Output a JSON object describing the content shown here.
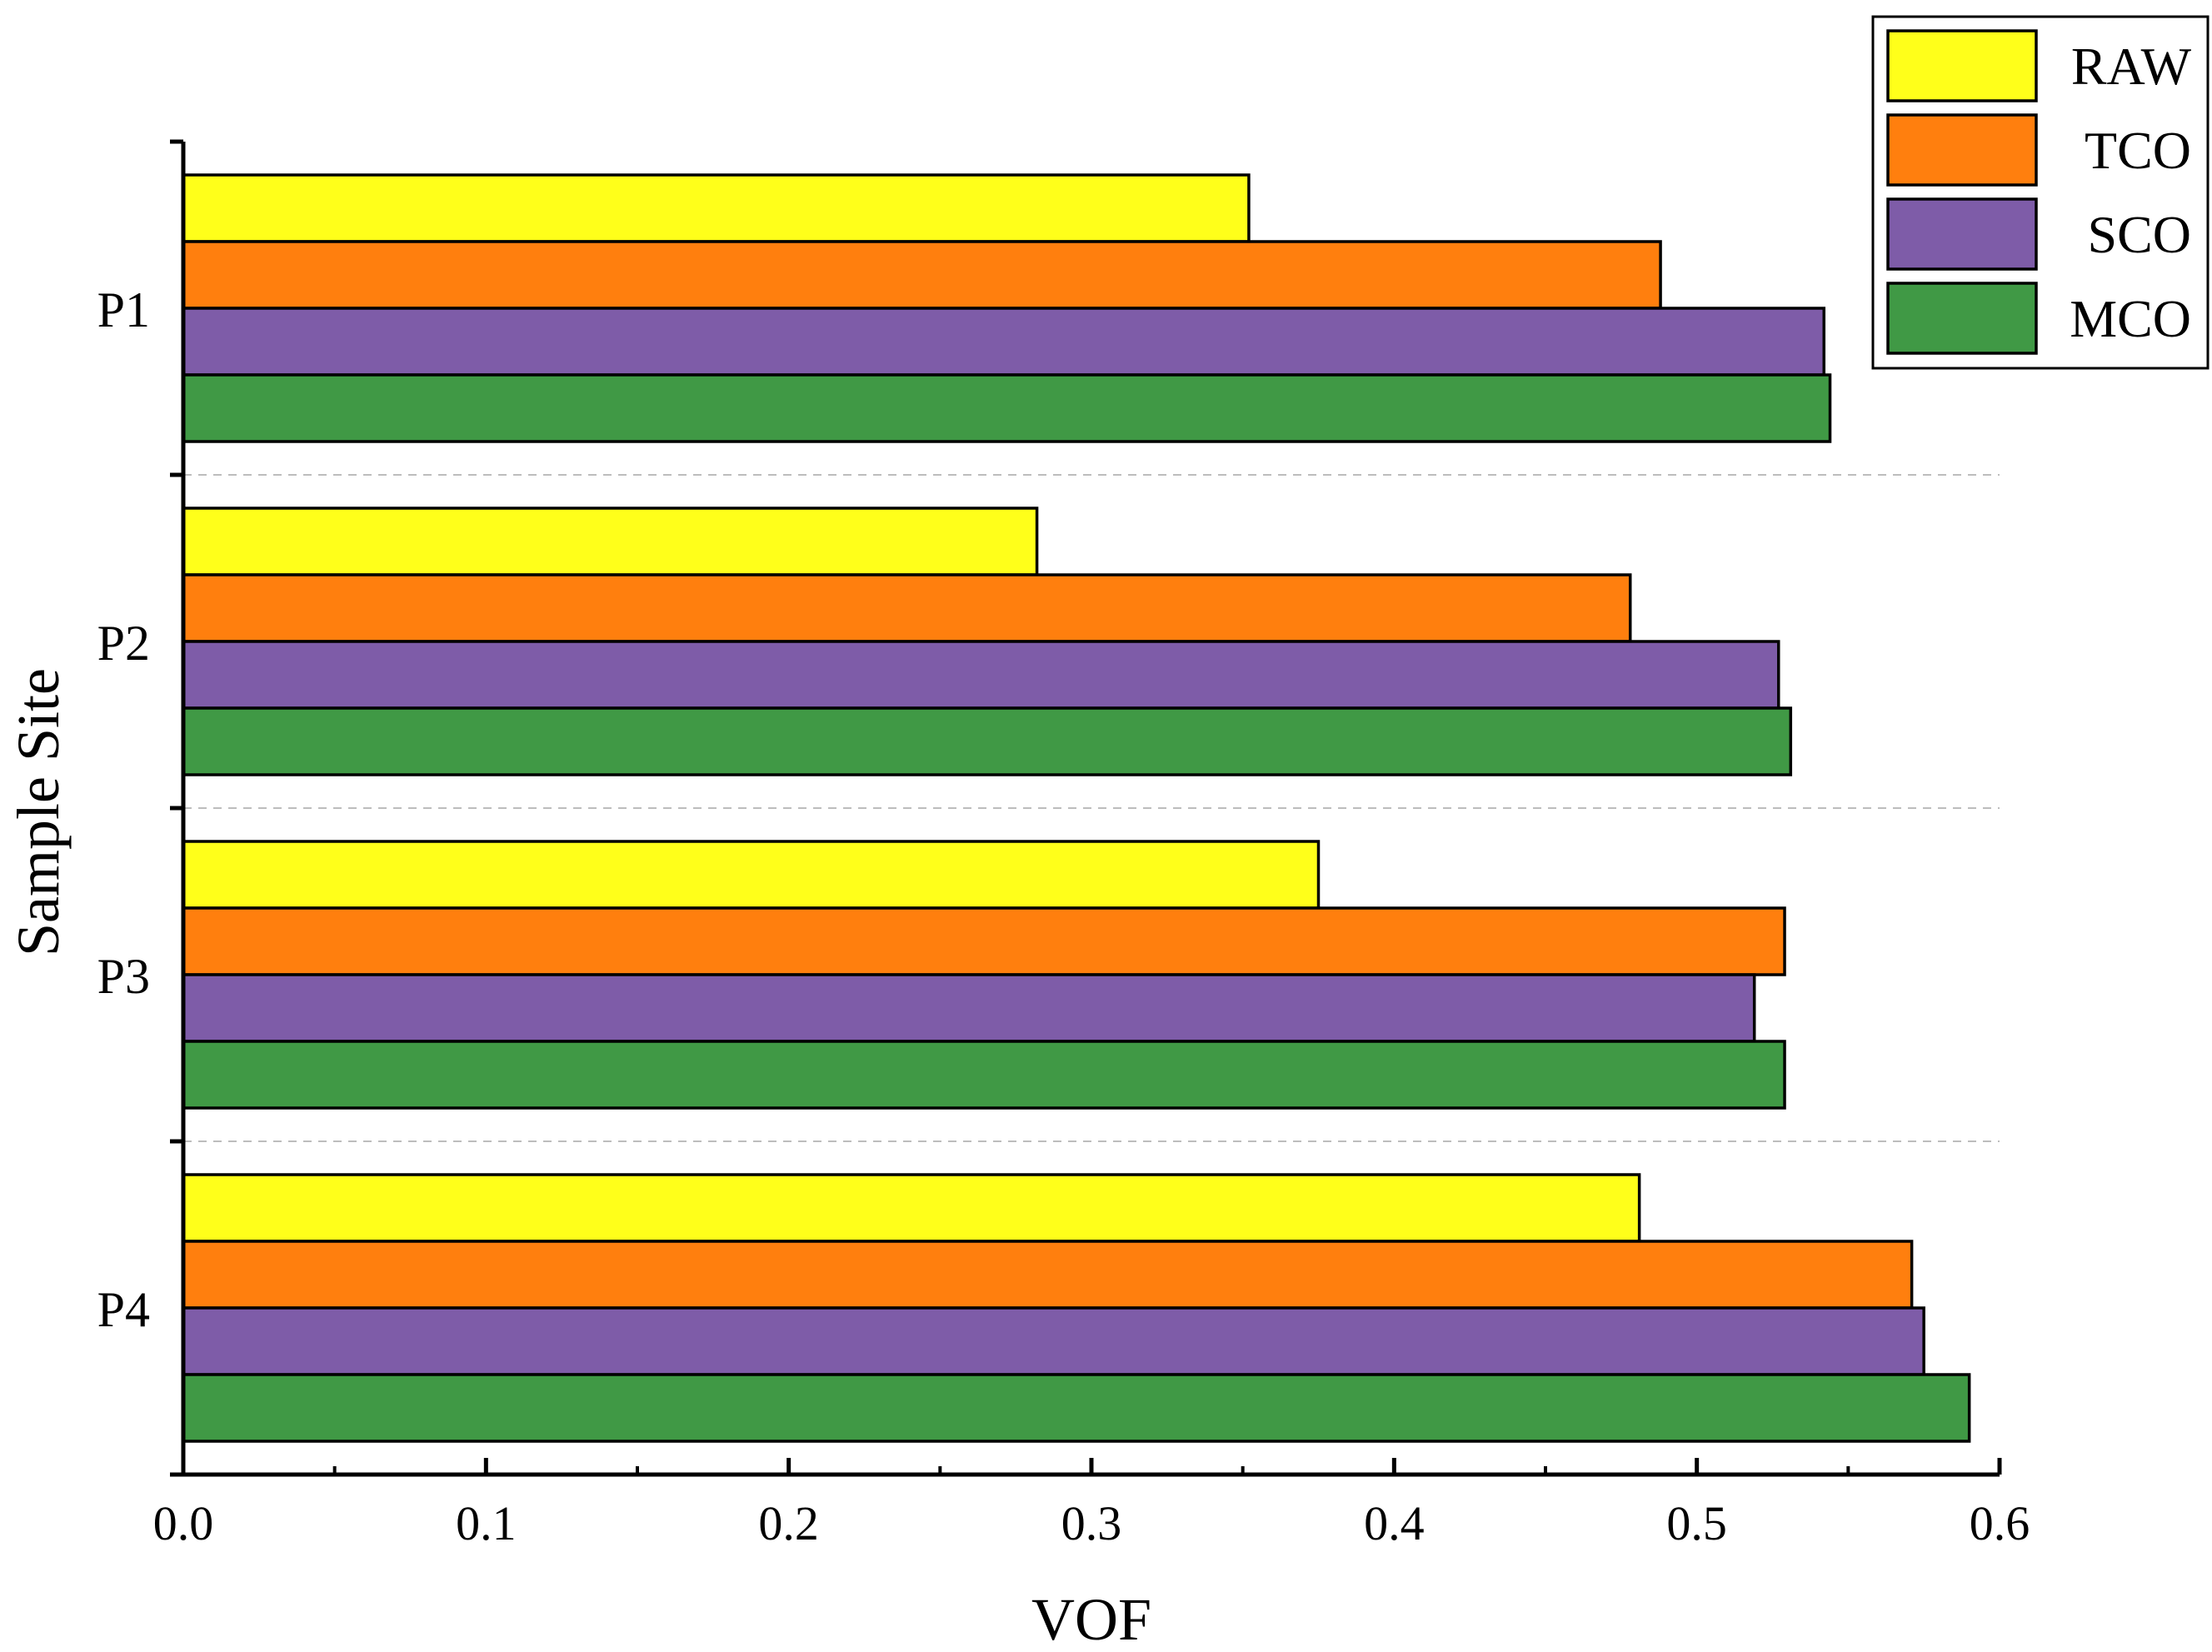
{
  "chart_data": {
    "type": "bar",
    "orientation": "horizontal",
    "title": "",
    "xlabel": "VOF",
    "ylabel": "Sample Site",
    "xlim": [
      0.0,
      0.6
    ],
    "x_ticks": [
      "0.0",
      "0.1",
      "0.2",
      "0.3",
      "0.4",
      "0.5",
      "0.6"
    ],
    "categories": [
      "P1",
      "P2",
      "P3",
      "P4"
    ],
    "series": [
      {
        "name": "RAW",
        "color": "#ffff1a",
        "values": [
          0.352,
          0.282,
          0.375,
          0.481
        ]
      },
      {
        "name": "TCO",
        "color": "#ff7f0e",
        "values": [
          0.488,
          0.478,
          0.529,
          0.571
        ]
      },
      {
        "name": "SCO",
        "color": "#7e5ca8",
        "values": [
          0.542,
          0.527,
          0.519,
          0.575
        ]
      },
      {
        "name": "MCO",
        "color": "#409945",
        "values": [
          0.544,
          0.531,
          0.529,
          0.59
        ]
      }
    ],
    "legend_position": "top-right",
    "grid": "dashed separators between categories"
  }
}
